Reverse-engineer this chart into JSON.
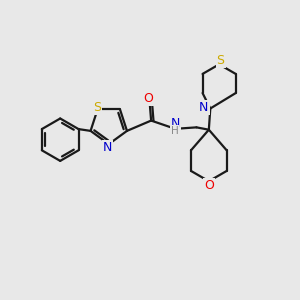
{
  "background_color": "#e8e8e8",
  "atom_colors": {
    "S": "#ccaa00",
    "N": "#0000cc",
    "O": "#ee0000",
    "C": "#000000",
    "H": "#888888"
  },
  "bond_color": "#1a1a1a",
  "bond_width": 1.6,
  "figsize": [
    3.0,
    3.0
  ],
  "dpi": 100
}
